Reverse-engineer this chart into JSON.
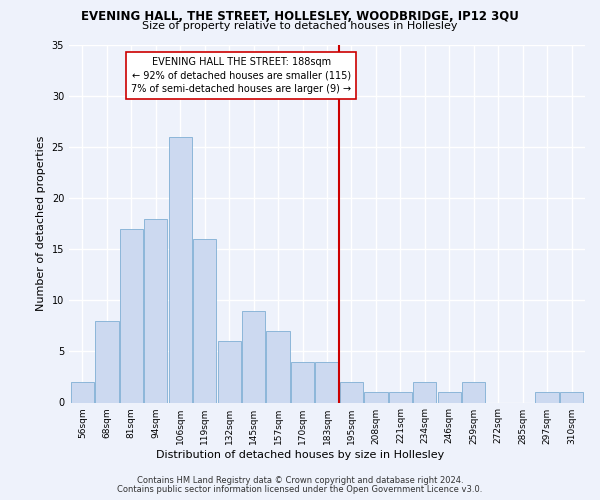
{
  "title": "EVENING HALL, THE STREET, HOLLESLEY, WOODBRIDGE, IP12 3QU",
  "subtitle": "Size of property relative to detached houses in Hollesley",
  "xlabel_bottom": "Distribution of detached houses by size in Hollesley",
  "ylabel": "Number of detached properties",
  "bar_color": "#ccd9f0",
  "bar_edge_color": "#7fafd4",
  "background_color": "#eef2fb",
  "grid_color": "#ffffff",
  "annotation_line_color": "#cc0000",
  "annotation_box_color": "#cc0000",
  "annotation_text_line1": "EVENING HALL THE STREET: 188sqm",
  "annotation_text_line2": "← 92% of detached houses are smaller (115)",
  "annotation_text_line3": "7% of semi-detached houses are larger (9) →",
  "property_bin_index": 10,
  "categories": [
    "56sqm",
    "68sqm",
    "81sqm",
    "94sqm",
    "106sqm",
    "119sqm",
    "132sqm",
    "145sqm",
    "157sqm",
    "170sqm",
    "183sqm",
    "195sqm",
    "208sqm",
    "221sqm",
    "234sqm",
    "246sqm",
    "259sqm",
    "272sqm",
    "285sqm",
    "297sqm",
    "310sqm"
  ],
  "values": [
    2,
    8,
    17,
    18,
    26,
    16,
    6,
    9,
    7,
    4,
    4,
    2,
    1,
    1,
    2,
    1,
    2,
    0,
    0,
    1,
    1
  ],
  "ylim": [
    0,
    35
  ],
  "yticks": [
    0,
    5,
    10,
    15,
    20,
    25,
    30,
    35
  ],
  "footnote1": "Contains HM Land Registry data © Crown copyright and database right 2024.",
  "footnote2": "Contains public sector information licensed under the Open Government Licence v3.0.",
  "title_fontsize": 8.5,
  "subtitle_fontsize": 8,
  "ylabel_fontsize": 8,
  "tick_fontsize": 6.5,
  "annotation_fontsize": 7,
  "footnote_fontsize": 6
}
